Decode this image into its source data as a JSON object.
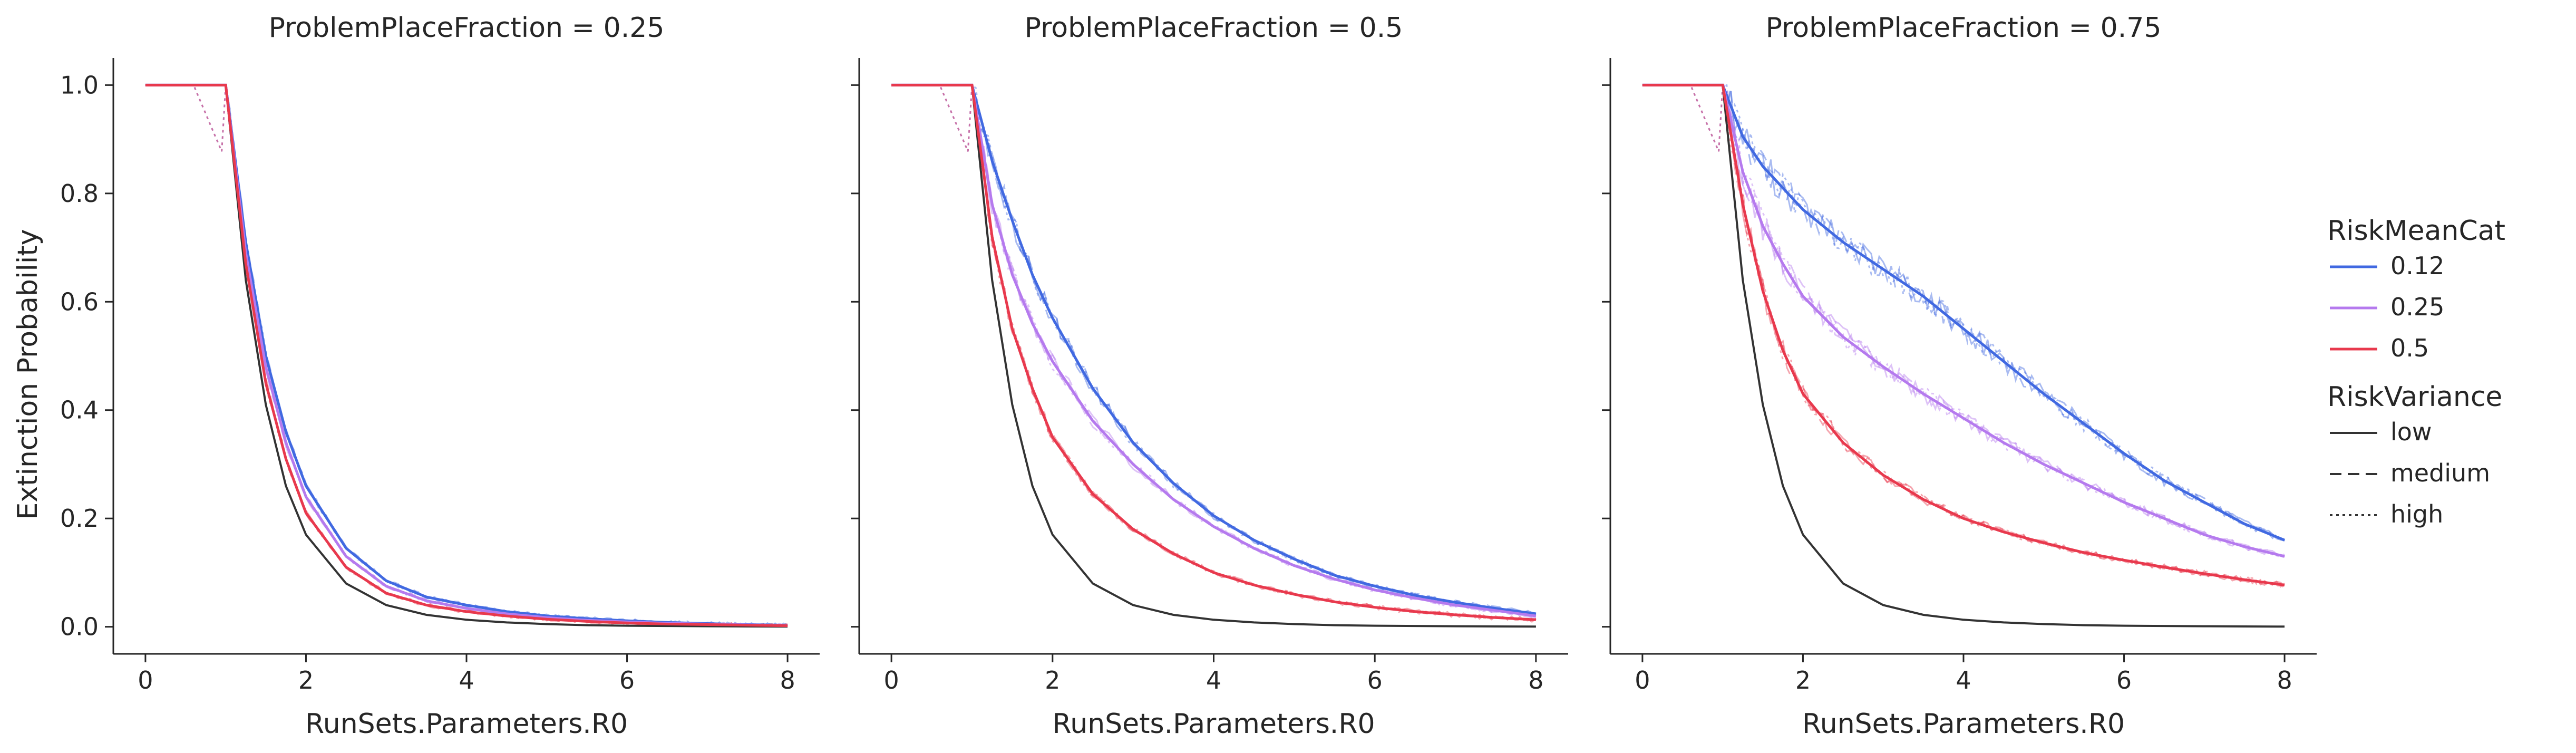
{
  "chart_data": {
    "type": "line",
    "ylabel": "Extinction Probability",
    "xlabel": "RunSets.Parameters.R0",
    "xlim": [
      -0.4,
      8.4
    ],
    "ylim": [
      -0.05,
      1.05
    ],
    "x_ticks": [
      "0",
      "2",
      "4",
      "6",
      "8"
    ],
    "y_ticks": [
      "0.0",
      "0.2",
      "0.4",
      "0.6",
      "0.8",
      "1.0"
    ],
    "grid": false,
    "legend_position": "right",
    "legend": {
      "hue_title": "RiskMeanCat",
      "hue_entries": [
        {
          "label": "0.12",
          "color": "#4169e1"
        },
        {
          "label": "0.25",
          "color": "#b57aee"
        },
        {
          "label": "0.5",
          "color": "#e8394d"
        }
      ],
      "style_title": "RiskVariance",
      "style_entries": [
        {
          "label": "low",
          "dash": "solid"
        },
        {
          "label": "medium",
          "dash": "dashed"
        },
        {
          "label": "high",
          "dash": "dotted"
        }
      ]
    },
    "colors": {
      "0.12": "#4169e1",
      "0.25": "#b57aee",
      "0.5": "#e8394d",
      "reference": "#333333"
    },
    "x": [
      0,
      0.5,
      1,
      1.25,
      1.5,
      1.75,
      2,
      2.5,
      3,
      3.5,
      4,
      4.5,
      5,
      5.5,
      6,
      6.5,
      7,
      7.5,
      8
    ],
    "panels": [
      {
        "title": "ProblemPlaceFraction = 0.25",
        "reference": [
          1,
          1,
          1,
          0.64,
          0.41,
          0.26,
          0.17,
          0.08,
          0.04,
          0.022,
          0.013,
          0.008,
          0.005,
          0.003,
          0.002,
          0.0015,
          0.001,
          0.0006,
          0.0003
        ],
        "series": [
          {
            "name": "0.12",
            "values": [
              1,
              1,
              1,
              0.71,
              0.5,
              0.36,
              0.26,
              0.145,
              0.085,
              0.055,
              0.04,
              0.028,
              0.02,
              0.015,
              0.011,
              0.008,
              0.006,
              0.004,
              0.003
            ]
          },
          {
            "name": "0.25",
            "values": [
              1,
              1,
              1,
              0.69,
              0.48,
              0.34,
              0.24,
              0.13,
              0.075,
              0.048,
              0.034,
              0.024,
              0.017,
              0.012,
              0.009,
              0.0065,
              0.005,
              0.0035,
              0.0025
            ]
          },
          {
            "name": "0.5",
            "values": [
              1,
              1,
              1,
              0.67,
              0.45,
              0.31,
              0.21,
              0.11,
              0.062,
              0.04,
              0.028,
              0.02,
              0.014,
              0.01,
              0.007,
              0.005,
              0.004,
              0.003,
              0.002
            ]
          }
        ]
      },
      {
        "title": "ProblemPlaceFraction = 0.5",
        "reference": [
          1,
          1,
          1,
          0.64,
          0.41,
          0.26,
          0.17,
          0.08,
          0.04,
          0.022,
          0.013,
          0.008,
          0.005,
          0.003,
          0.002,
          0.0015,
          0.001,
          0.0006,
          0.0003
        ],
        "series": [
          {
            "name": "0.12",
            "values": [
              1,
              1,
              1,
              0.86,
              0.75,
              0.65,
              0.57,
              0.44,
              0.34,
              0.265,
              0.205,
              0.16,
              0.125,
              0.095,
              0.075,
              0.058,
              0.045,
              0.034,
              0.024
            ]
          },
          {
            "name": "0.25",
            "values": [
              1,
              1,
              1,
              0.78,
              0.65,
              0.56,
              0.49,
              0.38,
              0.3,
              0.235,
              0.185,
              0.145,
              0.113,
              0.088,
              0.068,
              0.053,
              0.04,
              0.03,
              0.02
            ]
          },
          {
            "name": "0.5",
            "values": [
              1,
              1,
              1,
              0.72,
              0.55,
              0.44,
              0.35,
              0.245,
              0.18,
              0.135,
              0.1,
              0.077,
              0.06,
              0.046,
              0.036,
              0.028,
              0.022,
              0.017,
              0.013
            ]
          }
        ]
      },
      {
        "title": "ProblemPlaceFraction = 0.75",
        "reference": [
          1,
          1,
          1,
          0.64,
          0.41,
          0.26,
          0.17,
          0.08,
          0.04,
          0.022,
          0.013,
          0.008,
          0.005,
          0.003,
          0.002,
          0.0015,
          0.001,
          0.0006,
          0.0003
        ],
        "series": [
          {
            "name": "0.12",
            "values": [
              1,
              1,
              1,
              0.905,
              0.85,
              0.81,
              0.77,
              0.71,
              0.66,
              0.61,
              0.55,
              0.49,
              0.43,
              0.375,
              0.32,
              0.27,
              0.23,
              0.19,
              0.16
            ]
          },
          {
            "name": "0.25",
            "values": [
              1,
              1,
              1,
              0.84,
              0.74,
              0.67,
              0.61,
              0.535,
              0.48,
              0.43,
              0.385,
              0.34,
              0.3,
              0.265,
              0.23,
              0.2,
              0.17,
              0.148,
              0.13
            ]
          },
          {
            "name": "0.5",
            "values": [
              1,
              1,
              1,
              0.78,
              0.62,
              0.51,
              0.43,
              0.34,
              0.28,
              0.235,
              0.2,
              0.175,
              0.155,
              0.137,
              0.123,
              0.11,
              0.098,
              0.087,
              0.077
            ]
          }
        ]
      }
    ]
  }
}
